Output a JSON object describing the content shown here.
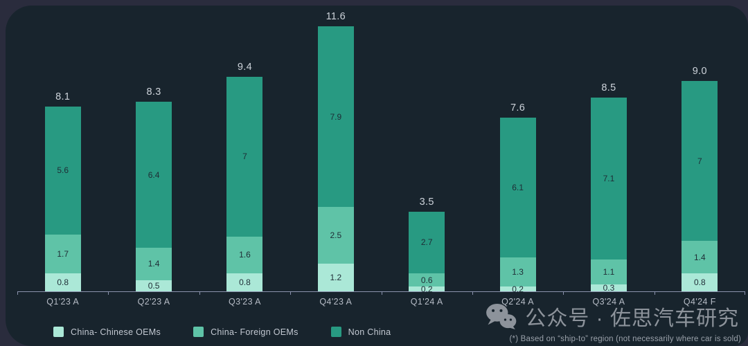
{
  "chart_data": {
    "type": "bar",
    "stacked": true,
    "title": "",
    "xlabel": "",
    "ylabel": "",
    "grid": false,
    "legend_position": "bottom-left",
    "categories": [
      "Q1'23 A",
      "Q2'23 A",
      "Q3'23 A",
      "Q4'23 A",
      "Q1'24 A",
      "Q2'24 A",
      "Q3'24 A",
      "Q4'24 F"
    ],
    "series": [
      {
        "name": "China- Chinese OEMs",
        "color": "#abe8d7",
        "values": [
          0.8,
          0.5,
          0.8,
          1.2,
          0.2,
          0.2,
          0.3,
          0.8
        ],
        "labels": [
          "0.8",
          "0.5",
          "0.8",
          "1.2",
          "0.2",
          "0.2",
          "0.3",
          "0.8"
        ]
      },
      {
        "name": "China- Foreign OEMs",
        "color": "#5fc3a7",
        "values": [
          1.7,
          1.4,
          1.6,
          2.5,
          0.6,
          1.3,
          1.1,
          1.4
        ],
        "labels": [
          "1.7",
          "1.4",
          "1.6",
          "2.5",
          "0.6",
          "1.3",
          "1.1",
          "1.4"
        ]
      },
      {
        "name": "Non China",
        "color": "#289a82",
        "values": [
          5.6,
          6.4,
          7,
          7.9,
          2.7,
          6.1,
          7.1,
          7
        ],
        "labels": [
          "5.6",
          "6.4",
          "7",
          "7.9",
          "2.7",
          "6.1",
          "7.1",
          "7"
        ]
      }
    ],
    "totals": [
      "8.1",
      "8.3",
      "9.4",
      "11.6",
      "3.5",
      "7.6",
      "8.5",
      "9.0"
    ],
    "annotation": "(*) Based on “ship-to” region (not necessarily where car is sold)"
  },
  "watermark": {
    "icon": "wechat-icon",
    "text": "公众号 · 佐思汽车研究"
  },
  "colors": {
    "outer_background": "#2a2c3d",
    "panel_background": "#18242d",
    "axis_line": "#8b92ad",
    "total_label": "#cdd3da",
    "segment_label": "#1e2c35",
    "axis_label": "#b6bcc6",
    "legend_label": "#c3c9d2",
    "watermark_gray": "#979da5"
  }
}
